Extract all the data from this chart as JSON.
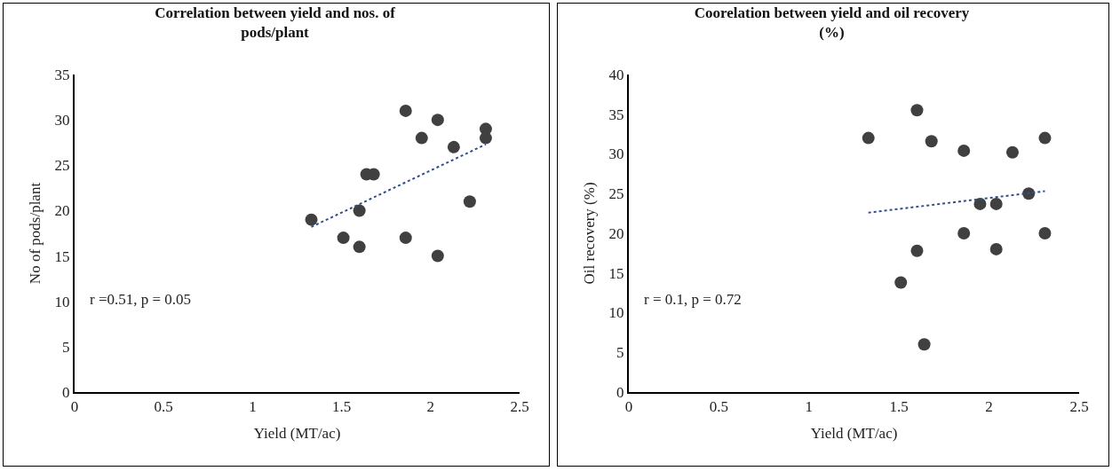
{
  "chart_data": [
    {
      "type": "scatter",
      "title": "Correlation between yield and nos. of pods/plant",
      "xlabel": "Yield (MT/ac)",
      "ylabel": "No of pods/plant",
      "grid": false,
      "xlim": [
        0,
        2.5
      ],
      "xticks": [
        0,
        0.5,
        1,
        1.5,
        2,
        2.5
      ],
      "ylim": [
        0,
        35
      ],
      "yticks": [
        0,
        5,
        10,
        15,
        20,
        25,
        30,
        35
      ],
      "series": [
        {
          "marker": "circle",
          "color": "#404040",
          "x": [
            1.33,
            1.51,
            1.6,
            1.6,
            1.64,
            1.68,
            1.86,
            1.86,
            1.95,
            2.04,
            2.04,
            2.13,
            2.22,
            2.31,
            2.31
          ],
          "values": [
            19,
            17,
            16,
            20,
            24,
            24,
            31,
            17,
            28,
            30,
            15,
            27,
            21,
            29,
            28
          ]
        },
        {
          "type": "line",
          "color": "#2f4f8f",
          "line_style": "dotted",
          "x": [
            1.33,
            2.31
          ],
          "values": [
            18.2,
            27.3
          ]
        }
      ],
      "annotations": [
        "r =0.51, p = 0.05"
      ]
    },
    {
      "type": "scatter",
      "title": "Coorelation between yield and oil recovery (%)",
      "xlabel": "Yield (MT/ac)",
      "ylabel": "Oil recovery (%)",
      "grid": false,
      "xlim": [
        0,
        2.5
      ],
      "xticks": [
        0,
        0.5,
        1,
        1.5,
        2,
        2.5
      ],
      "ylim": [
        0,
        40
      ],
      "yticks": [
        0,
        5,
        10,
        15,
        20,
        25,
        30,
        35,
        40
      ],
      "series": [
        {
          "marker": "circle",
          "color": "#404040",
          "x": [
            1.33,
            1.51,
            1.6,
            1.6,
            1.64,
            1.68,
            1.86,
            1.86,
            1.95,
            2.04,
            2.04,
            2.13,
            2.22,
            2.31,
            2.31
          ],
          "values": [
            32,
            13.8,
            35.5,
            17.8,
            6,
            31.6,
            30.4,
            20,
            23.7,
            23.7,
            18,
            30.2,
            25,
            32,
            20
          ]
        },
        {
          "type": "line",
          "color": "#2f4f8f",
          "line_style": "dotted",
          "x": [
            1.33,
            2.31
          ],
          "values": [
            22.6,
            25.3
          ]
        }
      ],
      "annotations": [
        "r = 0.1, p = 0.72"
      ]
    }
  ]
}
